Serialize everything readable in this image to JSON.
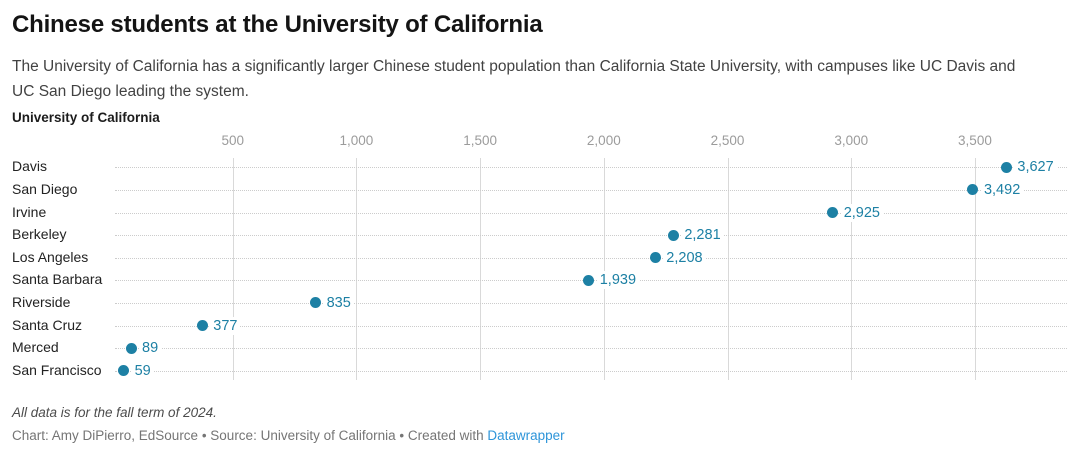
{
  "header": {
    "title": "Chinese students at the University of California",
    "subtitle": "The University of California has a significantly larger Chinese student population than California State University, with campuses like UC Davis and UC San Diego leading the system."
  },
  "chart_data": {
    "type": "scatter",
    "variant": "horizontal-dot-plot",
    "group_label": "University of California",
    "categories": [
      "Davis",
      "San Diego",
      "Irvine",
      "Berkeley",
      "Los Angeles",
      "Santa Barbara",
      "Riverside",
      "Santa Cruz",
      "Merced",
      "San Francisco"
    ],
    "values": [
      3627,
      3492,
      2925,
      2281,
      2208,
      1939,
      835,
      377,
      89,
      59
    ],
    "value_labels": [
      "3,627",
      "3,492",
      "2,925",
      "2,281",
      "2,208",
      "1,939",
      "835",
      "377",
      "89",
      "59"
    ],
    "x_ticks": [
      500,
      1000,
      1500,
      2000,
      2500,
      3000,
      3500
    ],
    "x_tick_labels": [
      "500",
      "1,000",
      "1,500",
      "2,000",
      "2,500",
      "3,000",
      "3,500"
    ],
    "xlim": [
      0,
      3872
    ],
    "grid": true,
    "legend": "none",
    "dot_color": "#1d80a4",
    "value_label_color": "#1d80a4",
    "gridline_color": "#d9d9d9",
    "leader_line_color": "#cccccc",
    "tick_label_color": "#9b9b9b"
  },
  "footer": {
    "note": "All data is for the fall term of 2024.",
    "credit_prefix": "Chart: Amy DiPierro, EdSource • Source: University of California • Created with ",
    "credit_link_label": "Datawrapper",
    "link_color": "#2e95d9"
  }
}
